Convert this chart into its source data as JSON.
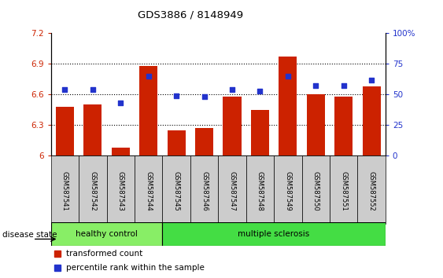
{
  "title": "GDS3886 / 8148949",
  "samples": [
    "GSM587541",
    "GSM587542",
    "GSM587543",
    "GSM587544",
    "GSM587545",
    "GSM587546",
    "GSM587547",
    "GSM587548",
    "GSM587549",
    "GSM587550",
    "GSM587551",
    "GSM587552"
  ],
  "bar_values": [
    6.48,
    6.5,
    6.08,
    6.88,
    6.25,
    6.27,
    6.58,
    6.45,
    6.97,
    6.6,
    6.58,
    6.68
  ],
  "dot_values_pct": [
    54,
    54,
    43,
    65,
    49,
    48,
    54,
    53,
    65,
    57,
    57,
    62
  ],
  "ylim_left": [
    6.0,
    7.2
  ],
  "ylim_right": [
    0,
    100
  ],
  "yticks_left": [
    6.0,
    6.3,
    6.6,
    6.9,
    7.2
  ],
  "yticks_right": [
    0,
    25,
    50,
    75,
    100
  ],
  "ytick_labels_left": [
    "6",
    "6.3",
    "6.6",
    "6.9",
    "7.2"
  ],
  "ytick_labels_right": [
    "0",
    "25",
    "50",
    "75",
    "100%"
  ],
  "bar_color": "#cc2200",
  "dot_color": "#2233cc",
  "healthy_samples": 4,
  "multiple_sclerosis_samples": 8,
  "healthy_label": "healthy control",
  "ms_label": "multiple sclerosis",
  "disease_state_label": "disease state",
  "legend_items": [
    "transformed count",
    "percentile rank within the sample"
  ],
  "healthy_color": "#88ee66",
  "ms_color": "#44dd44",
  "tick_bg_color": "#cccccc",
  "bar_width": 0.65
}
